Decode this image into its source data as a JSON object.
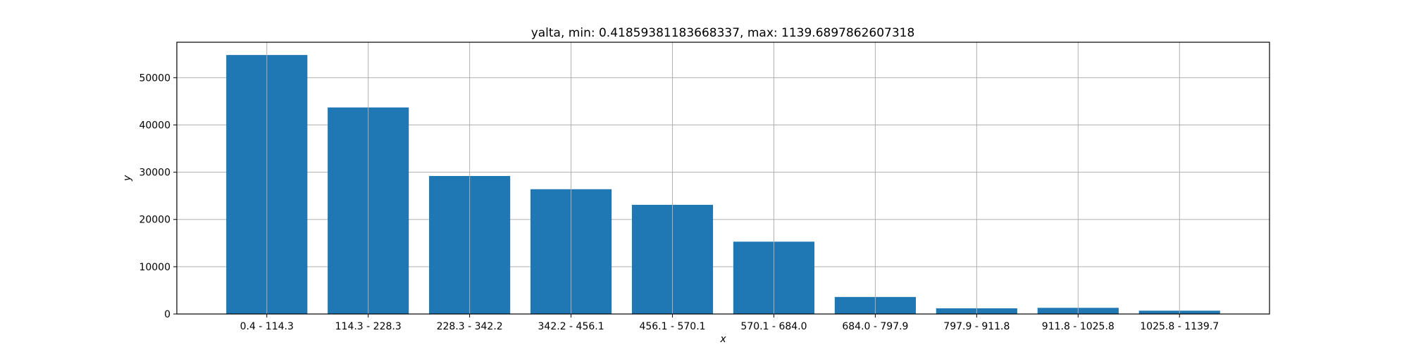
{
  "chart_data": {
    "type": "bar",
    "title": "yalta, min: 0.41859381183668337, max: 1139.6897862607318",
    "xlabel": "x",
    "ylabel": "y",
    "categories": [
      "0.4 - 114.3",
      "114.3 - 228.3",
      "228.3 - 342.2",
      "342.2 - 456.1",
      "456.1 - 570.1",
      "570.1 - 684.0",
      "684.0 - 797.9",
      "797.9 - 911.8",
      "911.8 - 1025.8",
      "1025.8 - 1139.7"
    ],
    "values": [
      54800,
      43700,
      29200,
      26400,
      23100,
      15300,
      3600,
      1200,
      1300,
      700
    ],
    "ylim": [
      0,
      57500
    ],
    "yticks": [
      0,
      10000,
      20000,
      30000,
      40000,
      50000
    ],
    "grid": true,
    "legend": "none",
    "bar_color": "#1f77b4",
    "grid_color": "#b0b0b0"
  }
}
